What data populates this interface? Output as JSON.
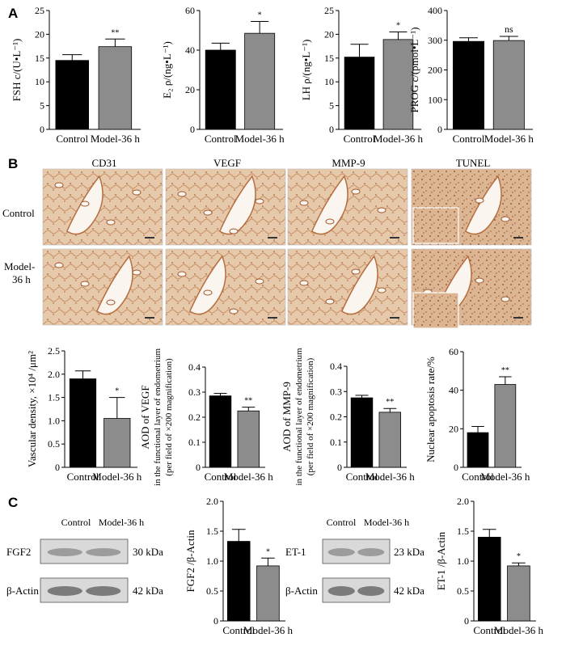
{
  "panels": {
    "a": "A",
    "b": "B",
    "c": "C"
  },
  "ihc": {
    "columns": [
      "CD31",
      "VEGF",
      "MMP-9",
      "TUNEL"
    ],
    "rows": [
      "Control",
      "Model-\n36 h"
    ]
  },
  "blots": [
    {
      "header": [
        "Control",
        "Model-36 h"
      ],
      "rows": [
        {
          "label": "FGF2",
          "kda": "30 kDa"
        },
        {
          "label": "β-Actin",
          "kda": "42 kDa"
        }
      ]
    },
    {
      "header": [
        "Control",
        "Model-36 h"
      ],
      "rows": [
        {
          "label": "ET-1",
          "kda": "23 kDa"
        },
        {
          "label": "β-Actin",
          "kda": "42 kDa"
        }
      ]
    }
  ],
  "colors": {
    "control": "#000000",
    "model": "#8c8c8c",
    "stain": "#c98a5a",
    "blot": "#6a6a6a"
  },
  "chart_data": [
    {
      "type": "bar",
      "categories": [
        "Control",
        "Model-36 h"
      ],
      "values": [
        14.5,
        17.4
      ],
      "errors": [
        1.2,
        1.6
      ],
      "sig": "**",
      "ylabel": "FSH c/(U•L⁻¹)",
      "ylim": [
        0,
        25
      ],
      "yticks": [
        "0",
        "5",
        "10",
        "15",
        "20",
        "25"
      ]
    },
    {
      "type": "bar",
      "categories": [
        "Control",
        "Model-36 h"
      ],
      "values": [
        40,
        48.5
      ],
      "errors": [
        3.5,
        6
      ],
      "sig": "*",
      "ylabel": "E₂ ρ/(ng•L⁻¹)",
      "ylim": [
        0,
        60
      ],
      "yticks": [
        "0",
        "20",
        "40",
        "60"
      ]
    },
    {
      "type": "bar",
      "categories": [
        "Control",
        "Model-36 h"
      ],
      "values": [
        15.2,
        18.9
      ],
      "errors": [
        2.7,
        1.6
      ],
      "sig": "*",
      "ylabel": "LH ρ/(ng•L⁻¹)",
      "ylim": [
        0,
        25
      ],
      "yticks": [
        "0",
        "5",
        "10",
        "15",
        "20",
        "25"
      ]
    },
    {
      "type": "bar",
      "categories": [
        "Control",
        "Model-36 h"
      ],
      "values": [
        296,
        299
      ],
      "errors": [
        12,
        14
      ],
      "sig": "ns",
      "ylabel": "PROG c/(pmol•L⁻¹)",
      "ylim": [
        0,
        400
      ],
      "yticks": [
        "0",
        "100",
        "200",
        "300",
        "400"
      ]
    },
    {
      "type": "bar",
      "categories": [
        "Control",
        "Model-36 h"
      ],
      "values": [
        1.9,
        1.05
      ],
      "errors": [
        0.17,
        0.45
      ],
      "sig": "*",
      "ylabel": "Vascular density, ×10⁴ /μm²",
      "ylim": [
        0,
        2.5
      ],
      "yticks": [
        "0",
        "0.5",
        "1.0",
        "1.5",
        "2.0",
        "2.5"
      ]
    },
    {
      "type": "bar",
      "categories": [
        "Control",
        "Model-36 h"
      ],
      "values": [
        0.285,
        0.225
      ],
      "errors": [
        0.01,
        0.015
      ],
      "sig": "**",
      "ylabel": "AOD of VEGF",
      "ylabel2": "in the functional layer of endometrium",
      "ylabel3": "(per field of ×200 magnification)",
      "ylim": [
        0,
        0.4
      ],
      "yticks": [
        "0",
        "0.1",
        "0.2",
        "0.3",
        "0.4"
      ]
    },
    {
      "type": "bar",
      "categories": [
        "Control",
        "Model-36 h"
      ],
      "values": [
        0.275,
        0.218
      ],
      "errors": [
        0.01,
        0.015
      ],
      "sig": "**",
      "ylabel": "AOD of MMP-9",
      "ylabel2": "in the functional layer of endometrium",
      "ylabel3": "(per field of ×200 magnification)",
      "ylim": [
        0,
        0.4
      ],
      "yticks": [
        "0",
        "0.1",
        "0.2",
        "0.3",
        "0.4"
      ]
    },
    {
      "type": "bar",
      "categories": [
        "Control",
        "Model-36 h"
      ],
      "values": [
        18,
        43
      ],
      "errors": [
        3.2,
        4
      ],
      "sig": "**",
      "ylabel": "Nuclear apoptosis rate/%",
      "ylim": [
        0,
        60
      ],
      "yticks": [
        "0",
        "20",
        "40",
        "60"
      ]
    },
    {
      "type": "bar",
      "categories": [
        "Control",
        "Model-36 h"
      ],
      "values": [
        1.33,
        0.92
      ],
      "errors": [
        0.2,
        0.13
      ],
      "sig": "*",
      "ylabel": "FGF2 /β-Actin",
      "ylim": [
        0,
        2.0
      ],
      "yticks": [
        "0",
        "0.5",
        "1.0",
        "1.5",
        "2.0"
      ]
    },
    {
      "type": "bar",
      "categories": [
        "Control",
        "Model-36 h"
      ],
      "values": [
        1.4,
        0.92
      ],
      "errors": [
        0.13,
        0.05
      ],
      "sig": "*",
      "ylabel": "ET-1 /β-Actin",
      "ylim": [
        0,
        2.0
      ],
      "yticks": [
        "0",
        "0.5",
        "1.0",
        "1.5",
        "2.0"
      ]
    }
  ]
}
